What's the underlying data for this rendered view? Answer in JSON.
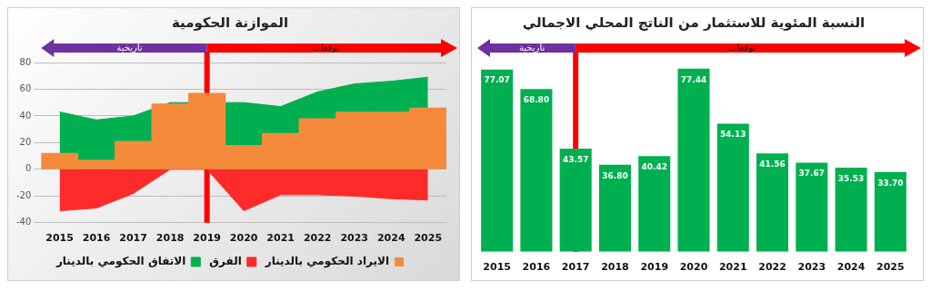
{
  "chart_data": [
    {
      "type": "area",
      "title": "الموازنة الحكومية",
      "categories": [
        "2015",
        "2016",
        "2017",
        "2018",
        "2019",
        "2020",
        "2021",
        "2022",
        "2023",
        "2024",
        "2025"
      ],
      "series": [
        {
          "name": "الايراد الحكومي بالدينار",
          "type": "bar",
          "color": "#f58b3a",
          "values": [
            12,
            7,
            21,
            49,
            57,
            18,
            27,
            38,
            43,
            43,
            46
          ]
        },
        {
          "name": "الفرق",
          "type": "area",
          "color": "#ff2a2a",
          "values": [
            -31,
            -29,
            -18,
            0,
            0,
            -31,
            -19,
            -19,
            -20,
            -22,
            -23
          ]
        },
        {
          "name": "الاتفاق الحكومي بالدينار",
          "type": "area",
          "color": "#00b050",
          "values": [
            43,
            37,
            40,
            50,
            null,
            50,
            47,
            58,
            64,
            66,
            69
          ]
        }
      ],
      "ylim": [
        -40,
        80
      ],
      "yticks": [
        -40,
        -20,
        0,
        20,
        40,
        60,
        80
      ],
      "grid": "y",
      "legend": "bottom",
      "ref_lines": [
        {
          "axis": "x",
          "value": "2019",
          "color": "#ff0000"
        }
      ],
      "annotations": [
        "تاريخية",
        "توقعات"
      ]
    },
    {
      "type": "bar",
      "title": "النسبة المئوية للاستثمار من الناتج المحلي الاجمالي",
      "categories": [
        "2015",
        "2016",
        "2017",
        "2018",
        "2019",
        "2020",
        "2021",
        "2022",
        "2023",
        "2024",
        "2025"
      ],
      "values": [
        77.07,
        68.8,
        43.57,
        36.8,
        40.42,
        77.44,
        54.13,
        41.56,
        37.67,
        35.53,
        33.7
      ],
      "color": "#00b050",
      "value_labels": [
        "77.07",
        "68.80",
        "43.57",
        "36.80",
        "40.42",
        "77.44",
        "54.13",
        "41.56",
        "37.67",
        "35.53",
        "33.70"
      ],
      "tick_labels": "x",
      "ref_lines": [
        {
          "axis": "x",
          "value": "2017",
          "color": "#ff0000"
        }
      ],
      "annotations": [
        "تاريخية",
        "توقعات"
      ]
    }
  ]
}
